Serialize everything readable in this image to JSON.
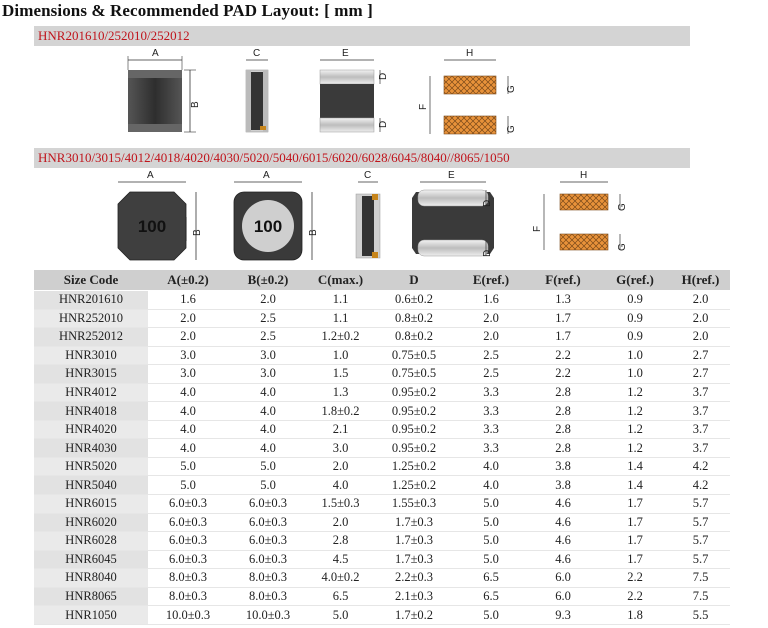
{
  "title": "Dimensions & Recommended PAD Layout: [ mm ]",
  "section1": {
    "series": "HNR201610/252010/252012",
    "labels": {
      "a": "A",
      "b": "B",
      "c": "C",
      "e": "E",
      "d_top": "D",
      "d_bottom": "D",
      "f": "F",
      "g_top": "G",
      "g_bottom": "G",
      "h": "H"
    }
  },
  "section2": {
    "series": "HNR3010/3015/4012/4018/4020/4030/5020/5040/6015/6020/6028/6045/8040//8065/1050",
    "marking_1": "100",
    "marking_2": "100",
    "labels": {
      "a1": "A",
      "b1": "B",
      "a2": "A",
      "b2": "B",
      "c": "C",
      "e": "E",
      "d_top": "D",
      "d_bottom": "D",
      "f": "F",
      "g_top": "G",
      "g_bottom": "G",
      "h": "H"
    }
  },
  "colors": {
    "section_bar": "#d4d4d4",
    "series_text": "#c0141c",
    "pad": "#e8923a",
    "core": "#333333"
  },
  "table": {
    "headers": [
      "Size Code",
      "A(±0.2)",
      "B(±0.2)",
      "C(max.)",
      "D",
      "E(ref.)",
      "F(ref.)",
      "G(ref.)",
      "H(ref.)"
    ],
    "rows": [
      [
        "HNR201610",
        "1.6",
        "2.0",
        "1.1",
        "0.6±0.2",
        "1.6",
        "1.3",
        "0.9",
        "2.0"
      ],
      [
        "HNR252010",
        "2.0",
        "2.5",
        "1.1",
        "0.8±0.2",
        "2.0",
        "1.7",
        "0.9",
        "2.0"
      ],
      [
        "HNR252012",
        "2.0",
        "2.5",
        "1.2±0.2",
        "0.8±0.2",
        "2.0",
        "1.7",
        "0.9",
        "2.0"
      ],
      [
        "HNR3010",
        "3.0",
        "3.0",
        "1.0",
        "0.75±0.5",
        "2.5",
        "2.2",
        "1.0",
        "2.7"
      ],
      [
        "HNR3015",
        "3.0",
        "3.0",
        "1.5",
        "0.75±0.5",
        "2.5",
        "2.2",
        "1.0",
        "2.7"
      ],
      [
        "HNR4012",
        "4.0",
        "4.0",
        "1.3",
        "0.95±0.2",
        "3.3",
        "2.8",
        "1.2",
        "3.7"
      ],
      [
        "HNR4018",
        "4.0",
        "4.0",
        "1.8±0.2",
        "0.95±0.2",
        "3.3",
        "2.8",
        "1.2",
        "3.7"
      ],
      [
        "HNR4020",
        "4.0",
        "4.0",
        "2.1",
        "0.95±0.2",
        "3.3",
        "2.8",
        "1.2",
        "3.7"
      ],
      [
        "HNR4030",
        "4.0",
        "4.0",
        "3.0",
        "0.95±0.2",
        "3.3",
        "2.8",
        "1.2",
        "3.7"
      ],
      [
        "HNR5020",
        "5.0",
        "5.0",
        "2.0",
        "1.25±0.2",
        "4.0",
        "3.8",
        "1.4",
        "4.2"
      ],
      [
        "HNR5040",
        "5.0",
        "5.0",
        "4.0",
        "1.25±0.2",
        "4.0",
        "3.8",
        "1.4",
        "4.2"
      ],
      [
        "HNR6015",
        "6.0±0.3",
        "6.0±0.3",
        "1.5±0.3",
        "1.55±0.3",
        "5.0",
        "4.6",
        "1.7",
        "5.7"
      ],
      [
        "HNR6020",
        "6.0±0.3",
        "6.0±0.3",
        "2.0",
        "1.7±0.3",
        "5.0",
        "4.6",
        "1.7",
        "5.7"
      ],
      [
        "HNR6028",
        "6.0±0.3",
        "6.0±0.3",
        "2.8",
        "1.7±0.3",
        "5.0",
        "4.6",
        "1.7",
        "5.7"
      ],
      [
        "HNR6045",
        "6.0±0.3",
        "6.0±0.3",
        "4.5",
        "1.7±0.3",
        "5.0",
        "4.6",
        "1.7",
        "5.7"
      ],
      [
        "HNR8040",
        "8.0±0.3",
        "8.0±0.3",
        "4.0±0.2",
        "2.2±0.3",
        "6.5",
        "6.0",
        "2.2",
        "7.5"
      ],
      [
        "HNR8065",
        "8.0±0.3",
        "8.0±0.3",
        "6.5",
        "2.1±0.3",
        "6.5",
        "6.0",
        "2.2",
        "7.5"
      ],
      [
        "HNR1050",
        "10.0±0.3",
        "10.0±0.3",
        "5.0",
        "1.7±0.2",
        "5.0",
        "9.3",
        "1.8",
        "5.5"
      ]
    ]
  }
}
